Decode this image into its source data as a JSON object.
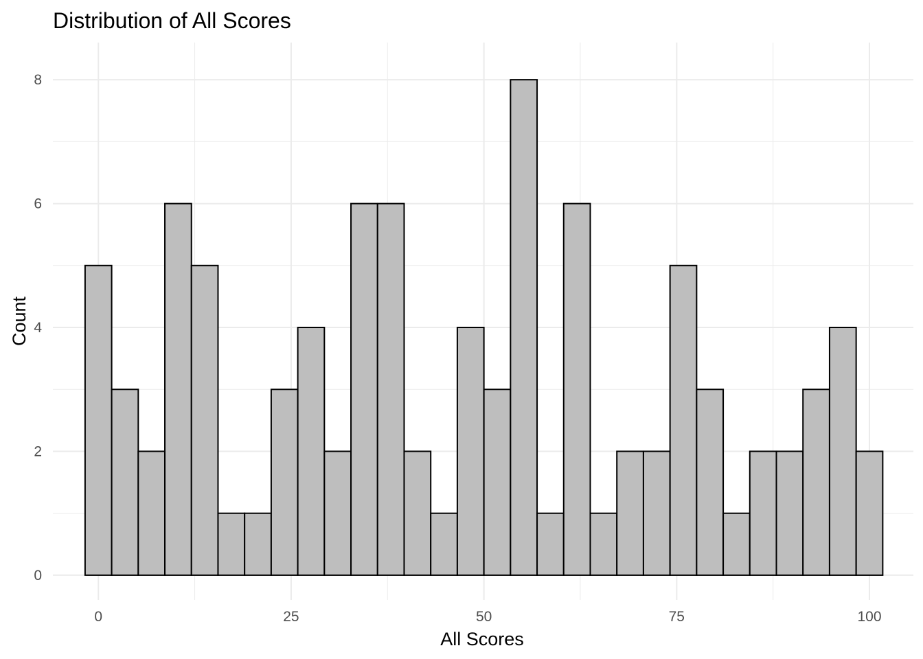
{
  "chart_data": {
    "type": "bar",
    "title": "Distribution of All Scores",
    "xlabel": "All Scores",
    "ylabel": "Count",
    "bin_width": 3.4483,
    "bin_start": -1.724,
    "counts": [
      5,
      3,
      2,
      6,
      5,
      1,
      1,
      3,
      4,
      2,
      6,
      6,
      2,
      1,
      4,
      3,
      8,
      1,
      6,
      1,
      2,
      2,
      5,
      3,
      1,
      2,
      2,
      3,
      4,
      2
    ],
    "xlim": [
      -5.9,
      105.7
    ],
    "ylim": [
      -0.4,
      8.6
    ],
    "x_ticks": [
      0,
      25,
      50,
      75,
      100
    ],
    "x_tick_labels": [
      "0",
      "25",
      "50",
      "75",
      "100"
    ],
    "y_ticks": [
      0,
      2,
      4,
      6,
      8
    ],
    "y_tick_labels": [
      "0",
      "2",
      "4",
      "6",
      "8"
    ],
    "bar_fill": "#bebebe",
    "bar_stroke": "#000000",
    "grid": true,
    "grid_color": "#ebebeb",
    "legend": "none"
  }
}
